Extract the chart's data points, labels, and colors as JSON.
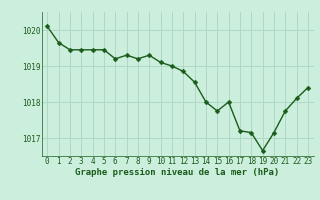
{
  "x": [
    0,
    1,
    2,
    3,
    4,
    5,
    6,
    7,
    8,
    9,
    10,
    11,
    12,
    13,
    14,
    15,
    16,
    17,
    18,
    19,
    20,
    21,
    22,
    23
  ],
  "y": [
    1020.1,
    1019.65,
    1019.45,
    1019.45,
    1019.45,
    1019.45,
    1019.2,
    1019.3,
    1019.2,
    1019.3,
    1019.1,
    1019.0,
    1018.85,
    1018.55,
    1018.0,
    1017.75,
    1018.0,
    1017.2,
    1017.15,
    1016.65,
    1017.15,
    1017.75,
    1018.1,
    1018.4
  ],
  "line_color": "#1a5c1a",
  "marker_color": "#1a5c1a",
  "bg_color": "#cceedd",
  "grid_color": "#b0d8c8",
  "xlabel": "Graphe pression niveau de la mer (hPa)",
  "ylim": [
    1016.5,
    1020.5
  ],
  "xlim": [
    -0.5,
    23.5
  ],
  "yticks": [
    1017,
    1018,
    1019,
    1020
  ],
  "xtick_labels": [
    "0",
    "1",
    "2",
    "3",
    "4",
    "5",
    "6",
    "7",
    "8",
    "9",
    "10",
    "11",
    "12",
    "13",
    "14",
    "15",
    "16",
    "17",
    "18",
    "19",
    "20",
    "21",
    "22",
    "23"
  ],
  "tick_fontsize": 5.5,
  "xlabel_fontsize": 6.5,
  "marker_size": 2.5,
  "line_width": 1.0
}
